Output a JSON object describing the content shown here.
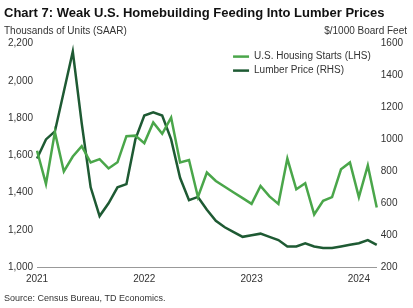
{
  "chart_data": {
    "type": "line",
    "title": "Chart 7: Weak U.S. Homebuilding Feeding Into Lumber Prices",
    "ylabel": "Thousands of Units (SAAR)",
    "y2label": "$/1000 Board Feet",
    "source": "Source: Census Bureau, TD Economics.",
    "categories": [
      "2021",
      null,
      null,
      null,
      null,
      null,
      null,
      null,
      null,
      null,
      null,
      null,
      "2022",
      null,
      null,
      null,
      null,
      null,
      null,
      null,
      null,
      null,
      null,
      null,
      "2023",
      null,
      null,
      null,
      null,
      null,
      null,
      null,
      null,
      null,
      null,
      null,
      "2024",
      null,
      null
    ],
    "series": [
      {
        "name": "U.S. Housing Starts (LHS)",
        "color": "#4aa64a",
        "values": [
          1625,
          1447,
          1725,
          1514,
          1594,
          1650,
          1562,
          1580,
          1530,
          1563,
          1703,
          1706,
          1666,
          1777,
          1716,
          1803,
          1562,
          1575,
          1377,
          1508,
          1463,
          1432,
          1401,
          1371,
          1340,
          1436,
          1380,
          1340,
          1583,
          1418,
          1451,
          1283,
          1356,
          1376,
          1525,
          1562,
          1376,
          1546,
          1321
        ]
      },
      {
        "name": "Lumber Price (RHS)",
        "color": "#1e5a33",
        "axis": "y2",
        "values": [
          880,
          1000,
          1050,
          1300,
          1550,
          1100,
          700,
          520,
          600,
          700,
          720,
          1000,
          1150,
          1170,
          1150,
          1000,
          760,
          620,
          640,
          560,
          490,
          450,
          420,
          390,
          400,
          410,
          390,
          370,
          330,
          330,
          350,
          330,
          320,
          320,
          330,
          340,
          350,
          370,
          340
        ]
      }
    ],
    "ylim": [
      1000,
      2200
    ],
    "yticks": [
      {
        "value": 1000,
        "label": "1,000"
      },
      {
        "value": 1200,
        "label": "1,200"
      },
      {
        "value": 1400,
        "label": "1,400"
      },
      {
        "value": 1600,
        "label": "1,600"
      },
      {
        "value": 1800,
        "label": "1,800"
      },
      {
        "value": 2000,
        "label": "2,000"
      },
      {
        "value": 2200,
        "label": "2,200"
      }
    ],
    "y2lim": [
      200,
      1600
    ],
    "y2ticks": [
      200,
      400,
      600,
      800,
      1000,
      1200,
      1400,
      1600
    ],
    "grid": false,
    "legend": "upper right"
  }
}
